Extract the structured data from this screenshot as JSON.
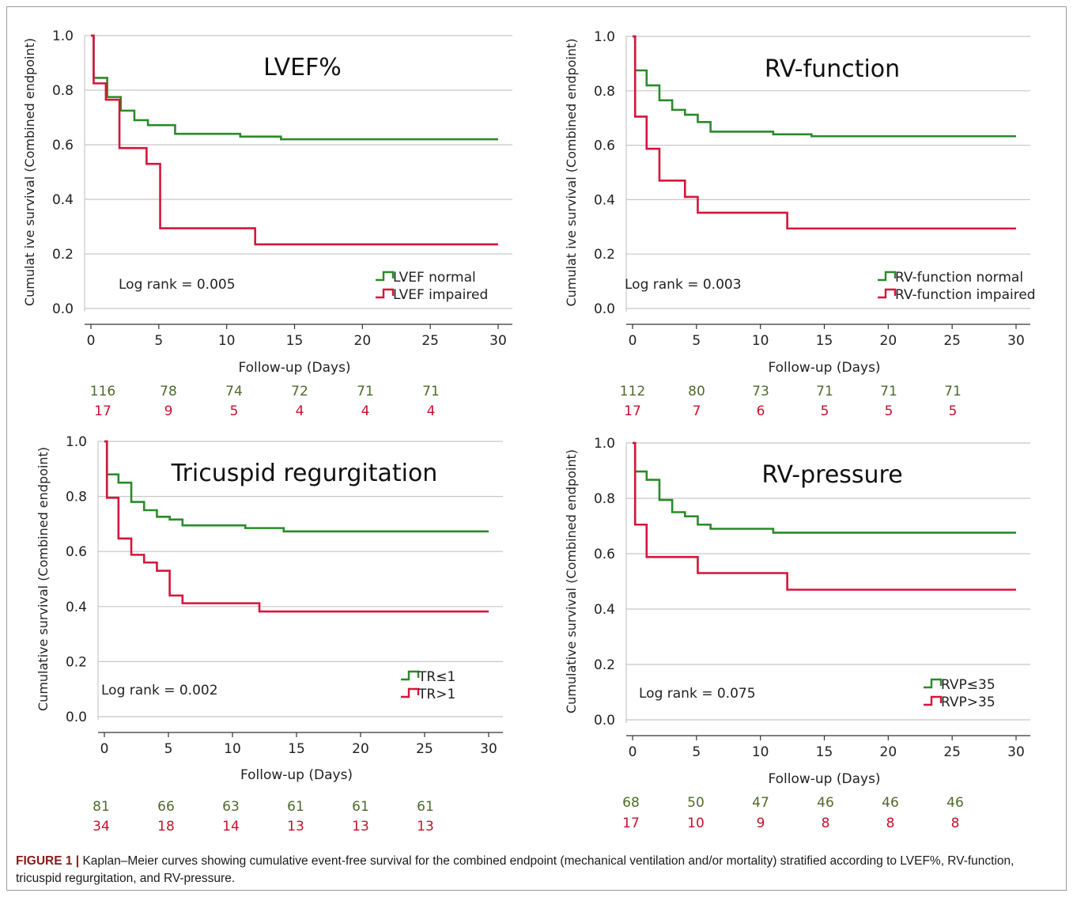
{
  "colors": {
    "normal": "#2a8a2a",
    "impaired": "#d6143a",
    "grid": "#c8c8c8",
    "axis": "#333333",
    "risk_green": "#4e6b2a",
    "risk_red": "#c8102e"
  },
  "caption": {
    "label": "FIGURE 1 |",
    "text": "Kaplan–Meier curves showing cumulative event-free survival for the combined endpoint (mechanical ventilation and/or mortality) stratified according to LVEF%, RV-function, tricuspid regurgitation, and RV-pressure."
  },
  "chart_data": [
    {
      "type": "line",
      "title": "LVEF%",
      "xlabel": "Follow-up (Days)",
      "ylabel": "Cumulat ive survival (Combined endpoint)",
      "xlim": [
        0,
        30
      ],
      "ylim": [
        0,
        1
      ],
      "x_ticks": [
        "0",
        "5",
        "10",
        "15",
        "20",
        "25",
        "30"
      ],
      "y_ticks": [
        "0.0",
        "0.2",
        "0.4",
        "0.6",
        "0.8",
        "1.0"
      ],
      "annotation": "Log rank = 0.005",
      "series": [
        {
          "name": "LVEF normal",
          "steps": [
            [
              0,
              1.0
            ],
            [
              0.2,
              0.845
            ],
            [
              1.2,
              0.775
            ],
            [
              2.2,
              0.725
            ],
            [
              3.2,
              0.69
            ],
            [
              4.2,
              0.672
            ],
            [
              6.2,
              0.64
            ],
            [
              11,
              0.63
            ],
            [
              14,
              0.62
            ],
            [
              30,
              0.62
            ]
          ]
        },
        {
          "name": "LVEF impaired",
          "steps": [
            [
              0,
              1.0
            ],
            [
              0.2,
              0.825
            ],
            [
              1.1,
              0.765
            ],
            [
              2.1,
              0.588
            ],
            [
              4.1,
              0.53
            ],
            [
              5.1,
              0.294
            ],
            [
              12.1,
              0.235
            ],
            [
              30,
              0.235
            ]
          ]
        }
      ],
      "at_risk": {
        "x": [
          0,
          5,
          10,
          15,
          20,
          25
        ],
        "normal": [
          "116",
          "78",
          "74",
          "72",
          "71",
          "71"
        ],
        "impaired": [
          "17",
          "9",
          "5",
          "4",
          "4",
          "4"
        ]
      }
    },
    {
      "type": "line",
      "title": "RV-function",
      "xlabel": "Follow-up (Days)",
      "ylabel": "Cumulat ive survival (Combined endpoint)",
      "xlim": [
        0,
        30
      ],
      "ylim": [
        0,
        1
      ],
      "x_ticks": [
        "0",
        "5",
        "10",
        "15",
        "20",
        "25",
        "30"
      ],
      "y_ticks": [
        "0.0",
        "0.2",
        "0.4",
        "0.6",
        "0.8",
        "1.0"
      ],
      "annotation": "Log rank = 0.003",
      "series": [
        {
          "name": "RV-function normal",
          "steps": [
            [
              0,
              1.0
            ],
            [
              0.2,
              0.875
            ],
            [
              1.1,
              0.82
            ],
            [
              2.1,
              0.765
            ],
            [
              3.1,
              0.73
            ],
            [
              4.1,
              0.712
            ],
            [
              5.1,
              0.685
            ],
            [
              6.1,
              0.65
            ],
            [
              11,
              0.64
            ],
            [
              14,
              0.633
            ],
            [
              30,
              0.633
            ]
          ]
        },
        {
          "name": "RV-function impaired",
          "steps": [
            [
              0,
              1.0
            ],
            [
              0.2,
              0.705
            ],
            [
              1.1,
              0.587
            ],
            [
              2.1,
              0.47
            ],
            [
              4.1,
              0.41
            ],
            [
              5.1,
              0.352
            ],
            [
              12.1,
              0.294
            ],
            [
              30,
              0.294
            ]
          ]
        }
      ],
      "at_risk": {
        "x": [
          0,
          5,
          10,
          15,
          20,
          25
        ],
        "normal": [
          "112",
          "80",
          "73",
          "71",
          "71",
          "71"
        ],
        "impaired": [
          "17",
          "7",
          "6",
          "5",
          "5",
          "5"
        ]
      }
    },
    {
      "type": "line",
      "title": "Tricuspid regurgitation",
      "xlabel": "Follow-up (Days)",
      "ylabel": "Cumulative survival (Combined endpoint)",
      "xlim": [
        0,
        30
      ],
      "ylim": [
        0,
        1
      ],
      "x_ticks": [
        "0",
        "5",
        "10",
        "15",
        "20",
        "25",
        "30"
      ],
      "y_ticks": [
        "0.0",
        "0.2",
        "0.4",
        "0.6",
        "0.8",
        "1.0"
      ],
      "annotation": "Log rank = 0.002",
      "series": [
        {
          "name": "TR≤1",
          "steps": [
            [
              0,
              1.0
            ],
            [
              0.2,
              0.88
            ],
            [
              1.1,
              0.85
            ],
            [
              2.1,
              0.78
            ],
            [
              3.1,
              0.75
            ],
            [
              4.1,
              0.726
            ],
            [
              5.1,
              0.716
            ],
            [
              6.1,
              0.695
            ],
            [
              11,
              0.685
            ],
            [
              14,
              0.673
            ],
            [
              30,
              0.673
            ]
          ]
        },
        {
          "name": "TR>1",
          "steps": [
            [
              0,
              1.0
            ],
            [
              0.2,
              0.795
            ],
            [
              1.1,
              0.647
            ],
            [
              2.1,
              0.588
            ],
            [
              3.1,
              0.56
            ],
            [
              4.1,
              0.53
            ],
            [
              5.1,
              0.44
            ],
            [
              6.1,
              0.412
            ],
            [
              12.1,
              0.382
            ],
            [
              30,
              0.382
            ]
          ]
        }
      ],
      "at_risk": {
        "x": [
          0,
          5,
          10,
          15,
          20,
          25
        ],
        "normal": [
          "81",
          "66",
          "63",
          "61",
          "61",
          "61"
        ],
        "impaired": [
          "34",
          "18",
          "14",
          "13",
          "13",
          "13"
        ]
      }
    },
    {
      "type": "line",
      "title": "RV-pressure",
      "xlabel": "Follow-up (Days)",
      "ylabel": "Cumulative survival (Combined endpoint)",
      "xlim": [
        0,
        30
      ],
      "ylim": [
        0,
        1
      ],
      "x_ticks": [
        "0",
        "5",
        "10",
        "15",
        "20",
        "25",
        "30"
      ],
      "y_ticks": [
        "0.0",
        "0.2",
        "0.4",
        "0.6",
        "0.8",
        "1.0"
      ],
      "annotation": "Log rank = 0.075",
      "series": [
        {
          "name": "RVP≤35",
          "steps": [
            [
              0,
              1.0
            ],
            [
              0.2,
              0.897
            ],
            [
              1.1,
              0.867
            ],
            [
              2.1,
              0.794
            ],
            [
              3.1,
              0.75
            ],
            [
              4.1,
              0.735
            ],
            [
              5.1,
              0.705
            ],
            [
              6.1,
              0.69
            ],
            [
              11,
              0.676
            ],
            [
              30,
              0.676
            ]
          ]
        },
        {
          "name": "RVP>35",
          "steps": [
            [
              0,
              1.0
            ],
            [
              0.2,
              0.705
            ],
            [
              1.1,
              0.588
            ],
            [
              5.1,
              0.53
            ],
            [
              12.1,
              0.47
            ],
            [
              30,
              0.47
            ]
          ]
        }
      ],
      "at_risk": {
        "x": [
          0,
          5,
          10,
          15,
          20,
          25
        ],
        "normal": [
          "68",
          "50",
          "47",
          "46",
          "46",
          "46"
        ],
        "impaired": [
          "17",
          "10",
          "9",
          "8",
          "8",
          "8"
        ]
      }
    }
  ]
}
